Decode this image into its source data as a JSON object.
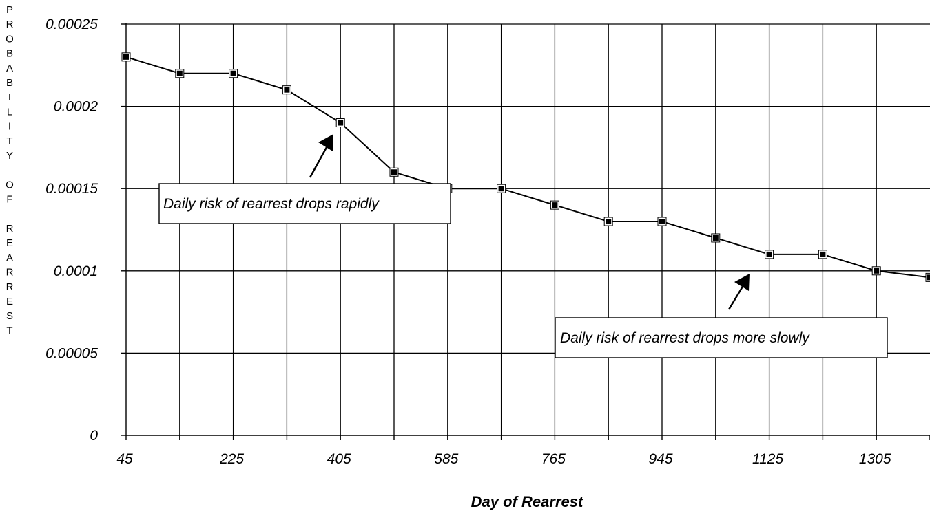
{
  "chart_data": {
    "type": "line",
    "xlabel": "Day of Rearrest",
    "ylabel": "PROBABILITY OF REARREST",
    "ylim": [
      0,
      0.00025
    ],
    "yticks": [
      "0",
      "0.00005",
      "0.0001",
      "0.00015",
      "0.0002",
      "0.00025"
    ],
    "xticks": [
      "45",
      "225",
      "405",
      "585",
      "765",
      "945",
      "1125",
      "1305"
    ],
    "x": [
      45,
      135,
      225,
      315,
      405,
      495,
      585,
      675,
      765,
      855,
      945,
      1035,
      1125,
      1215,
      1305,
      1395
    ],
    "y": [
      0.00023,
      0.00022,
      0.00022,
      0.00021,
      0.00019,
      0.00016,
      0.00015,
      0.00015,
      0.00014,
      0.00013,
      0.00013,
      0.00012,
      0.00011,
      0.00011,
      0.0001,
      9.6e-05
    ],
    "grid": true,
    "legend": "none",
    "annotations": [
      {
        "text": "Daily risk of rearrest drops rapidly",
        "target_x": 405,
        "target_y": 0.00019
      },
      {
        "text": "Daily risk of rearrest drops more slowly",
        "target_x": 1125,
        "target_y": 0.0001
      }
    ]
  }
}
